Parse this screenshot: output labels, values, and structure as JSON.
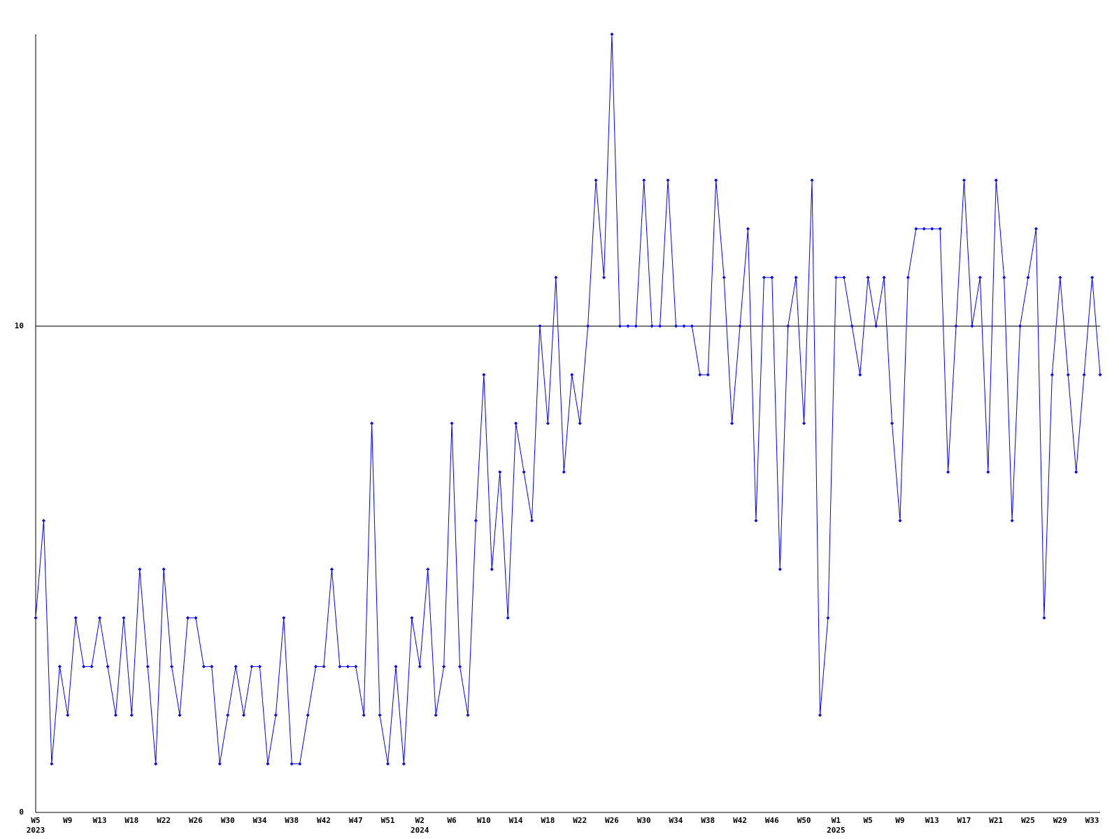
{
  "chart_data": {
    "type": "line",
    "categories": [
      "W5",
      null,
      null,
      null,
      "W9",
      null,
      null,
      null,
      "W13",
      null,
      null,
      null,
      "W18",
      null,
      null,
      null,
      "W22",
      null,
      null,
      null,
      "W26",
      null,
      null,
      null,
      "W30",
      null,
      null,
      null,
      "W34",
      null,
      null,
      null,
      "W38",
      null,
      null,
      null,
      "W42",
      null,
      null,
      null,
      "W47",
      null,
      null,
      null,
      "W51",
      null,
      null,
      null,
      "W2",
      null,
      null,
      null,
      "W6",
      null,
      null,
      null,
      "W10",
      null,
      null,
      null,
      "W14",
      null,
      null,
      null,
      "W18",
      null,
      null,
      null,
      "W22",
      null,
      null,
      null,
      "W26",
      null,
      null,
      null,
      "W30",
      null,
      null,
      null,
      "W34",
      null,
      null,
      null,
      "W38",
      null,
      null,
      null,
      "W42",
      null,
      null,
      null,
      "W46",
      null,
      null,
      null,
      "W50",
      null,
      null,
      null,
      "W1",
      null,
      null,
      null,
      "W5",
      null,
      null,
      null,
      "W9",
      null,
      null,
      null,
      "W13",
      null,
      null,
      null,
      "W17",
      null,
      null,
      null,
      "W21",
      null,
      null,
      null,
      "W25",
      null,
      null,
      null,
      "W29",
      null,
      null,
      null,
      "W33",
      null
    ],
    "years": [
      "2023",
      null,
      null,
      null,
      null,
      null,
      null,
      null,
      null,
      null,
      null,
      null,
      null,
      null,
      null,
      null,
      null,
      null,
      null,
      null,
      null,
      null,
      null,
      null,
      null,
      null,
      null,
      null,
      null,
      null,
      null,
      null,
      null,
      null,
      null,
      null,
      null,
      null,
      null,
      null,
      null,
      null,
      null,
      null,
      null,
      null,
      null,
      null,
      "2024",
      null,
      null,
      null,
      null,
      null,
      null,
      null,
      null,
      null,
      null,
      null,
      null,
      null,
      null,
      null,
      null,
      null,
      null,
      null,
      null,
      null,
      null,
      null,
      null,
      null,
      null,
      null,
      null,
      null,
      null,
      null,
      null,
      null,
      null,
      null,
      null,
      null,
      null,
      null,
      null,
      null,
      null,
      null,
      null,
      null,
      null,
      null,
      null,
      null,
      null,
      null,
      "2025",
      null,
      null,
      null,
      null,
      null,
      null,
      null,
      null,
      null,
      null,
      null,
      null,
      null,
      null,
      null,
      null,
      null,
      null,
      null,
      null,
      null,
      null,
      null,
      null,
      null,
      null,
      null,
      null,
      null,
      null,
      null,
      null,
      null
    ],
    "series": [
      {
        "color": "#0000ff",
        "values": [
          4,
          6,
          1,
          3,
          2,
          4,
          3,
          3,
          4,
          3,
          2,
          4,
          2,
          5,
          3,
          1,
          5,
          3,
          2,
          4,
          4,
          3,
          3,
          1,
          2,
          3,
          2,
          3,
          3,
          1,
          2,
          4,
          1,
          1,
          2,
          3,
          3,
          5,
          3,
          3,
          3,
          2,
          8,
          2,
          1,
          3,
          1,
          4,
          3,
          5,
          2,
          3,
          8,
          3,
          2,
          6,
          9,
          5,
          7,
          4,
          8,
          7,
          6,
          10,
          8,
          11,
          7,
          9,
          8,
          10,
          13,
          11,
          16,
          10,
          10,
          10,
          13,
          10,
          10,
          13,
          10,
          10,
          10,
          9,
          9,
          13,
          11,
          8,
          10,
          12,
          6,
          11,
          11,
          5,
          10,
          11,
          8,
          13,
          2,
          4,
          11,
          11,
          10,
          9,
          11,
          10,
          11,
          8,
          6,
          11,
          12,
          12,
          12,
          12,
          7,
          10,
          13,
          10,
          11,
          7,
          13,
          11,
          6,
          10,
          11,
          12,
          4,
          9,
          11,
          9,
          7,
          9,
          11,
          9
        ]
      }
    ],
    "ylim": [
      0,
      16
    ],
    "yticks": [
      0,
      10
    ],
    "grid": true
  }
}
